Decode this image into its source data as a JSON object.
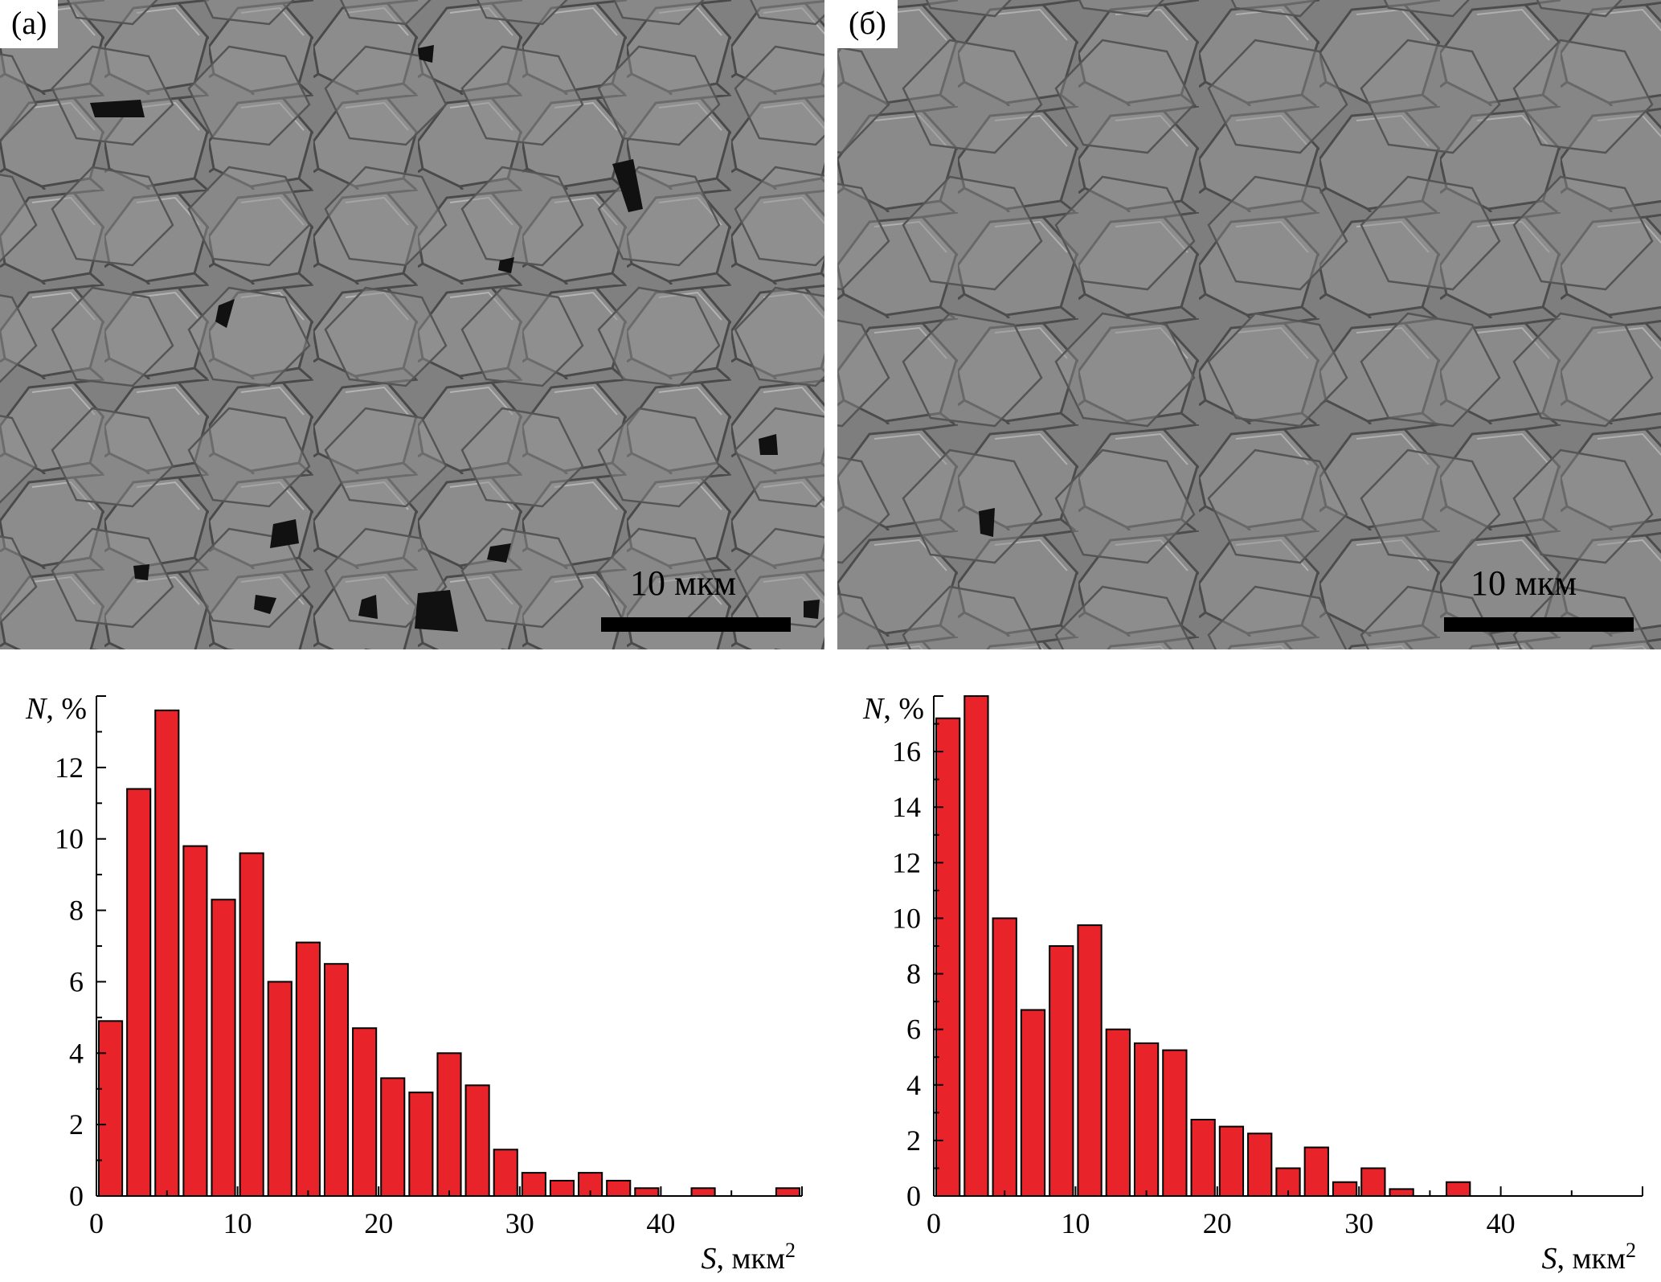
{
  "panels": [
    {
      "label": "(а)",
      "scale_label": "10 мкм",
      "chart_data": {
        "type": "bar",
        "x": [
          1,
          3,
          5,
          7,
          9,
          11,
          13,
          15,
          17,
          19,
          21,
          23,
          25,
          27,
          29,
          31,
          33,
          35,
          37,
          39,
          41,
          43,
          45,
          47,
          49
        ],
        "values": [
          4.9,
          11.4,
          13.6,
          9.8,
          8.3,
          9.6,
          6.0,
          7.1,
          6.5,
          4.7,
          3.3,
          2.9,
          4.0,
          3.1,
          1.3,
          0.65,
          0.43,
          0.65,
          0.43,
          0.22,
          0.0,
          0.22,
          0.0,
          0.0,
          0.22
        ],
        "bar_color": "#e8242a",
        "xlim": [
          0,
          50
        ],
        "ylim": [
          0,
          14
        ],
        "xticks": [
          0,
          10,
          20,
          30,
          40
        ],
        "yticks": [
          0,
          2,
          4,
          6,
          8,
          10,
          12
        ],
        "xlabel_var": "S",
        "xlabel_unit": ", мкм",
        "xlabel_sup": "2",
        "ylabel_var": "N",
        "ylabel_unit": ", %",
        "grid": false
      }
    },
    {
      "label": "(б)",
      "scale_label": "10 мкм",
      "chart_data": {
        "type": "bar",
        "x": [
          1,
          3,
          5,
          7,
          9,
          11,
          13,
          15,
          17,
          19,
          21,
          23,
          25,
          27,
          29,
          31,
          33,
          35,
          37
        ],
        "values": [
          17.2,
          18.0,
          10.0,
          6.7,
          9.0,
          9.75,
          6.0,
          5.5,
          5.25,
          2.75,
          2.5,
          2.25,
          1.0,
          1.75,
          0.5,
          1.0,
          0.25,
          0.0,
          0.5
        ],
        "bar_color": "#e8242a",
        "xlim": [
          0,
          50
        ],
        "ylim": [
          0,
          18
        ],
        "xticks": [
          0,
          10,
          20,
          30,
          40
        ],
        "yticks": [
          0,
          2,
          4,
          6,
          8,
          10,
          12,
          14,
          16
        ],
        "xlabel_var": "S",
        "xlabel_unit": ", мкм",
        "xlabel_sup": "2",
        "ylabel_var": "N",
        "ylabel_unit": ", %",
        "grid": false
      }
    }
  ]
}
